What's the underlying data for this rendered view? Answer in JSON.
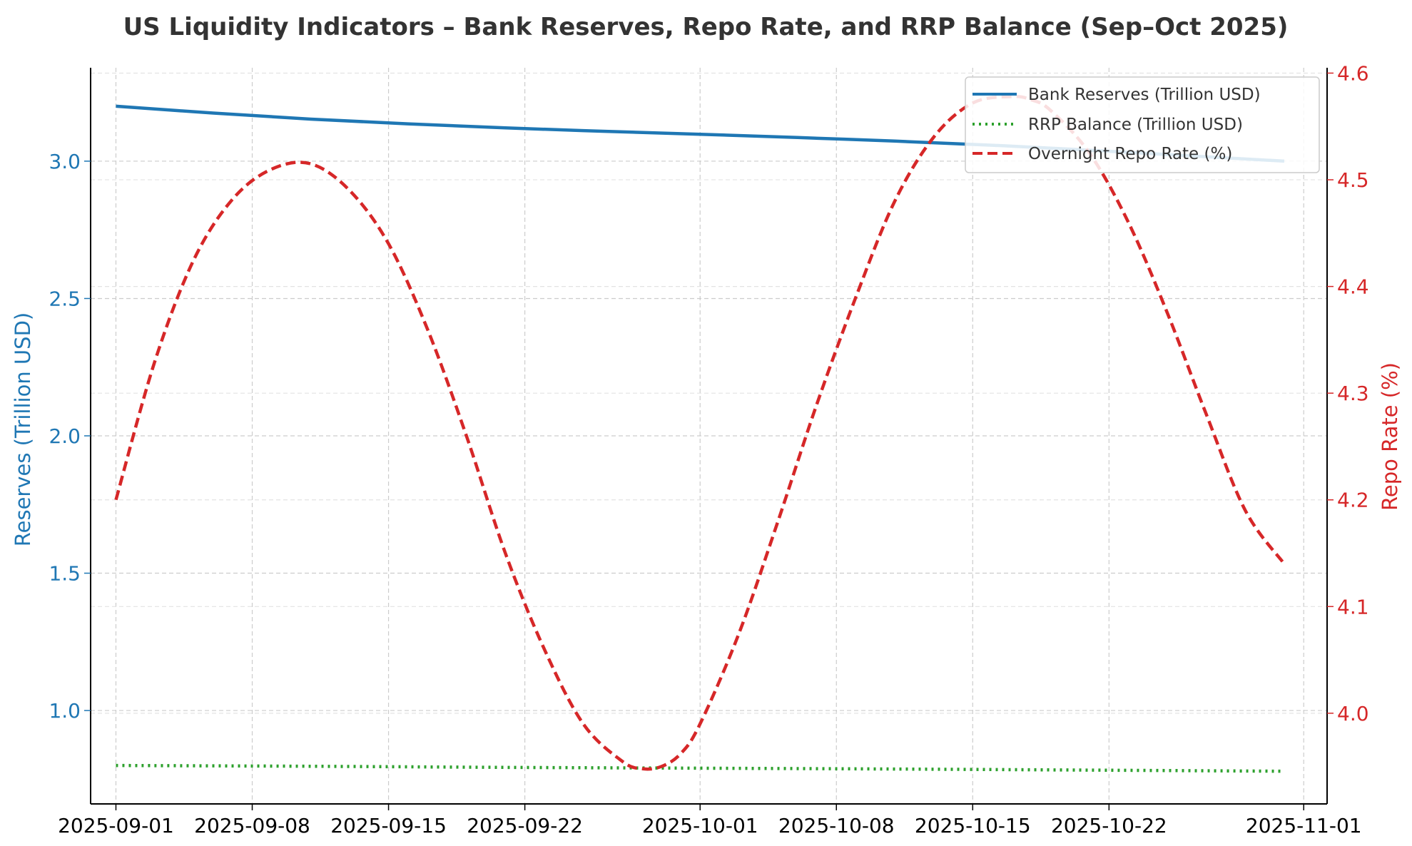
{
  "chart_data": {
    "type": "line",
    "title": "US Liquidity Indicators – Bank Reserves, Repo Rate, and RRP Balance (Sep–Oct 2025)",
    "xlabel": "",
    "ylabel_left": "Reserves (Trillion USD)",
    "ylabel_right": "Repo Rate (%)",
    "x_start": "2025-09-01",
    "x_end": "2025-10-31",
    "xlim_days": [
      -1.3,
      62.2
    ],
    "x_ticks": [
      {
        "day": 0,
        "label": "2025-09-01"
      },
      {
        "day": 7,
        "label": "2025-09-08"
      },
      {
        "day": 14,
        "label": "2025-09-15"
      },
      {
        "day": 21,
        "label": "2025-09-22"
      },
      {
        "day": 30,
        "label": "2025-10-01"
      },
      {
        "day": 37,
        "label": "2025-10-08"
      },
      {
        "day": 44,
        "label": "2025-10-15"
      },
      {
        "day": 51,
        "label": "2025-10-22"
      },
      {
        "day": 61,
        "label": "2025-11-01"
      }
    ],
    "ylim_left": [
      0.66,
      3.34
    ],
    "yticks_left": [
      "1.0",
      "1.5",
      "2.0",
      "2.5",
      "3.0"
    ],
    "ylim_right": [
      3.915,
      4.605
    ],
    "yticks_right": [
      "4.0",
      "4.1",
      "4.2",
      "4.3",
      "4.4",
      "4.5",
      "4.6"
    ],
    "grid": true,
    "legend_position": "top-right",
    "series": [
      {
        "name": "Bank Reserves (Trillion USD)",
        "axis": "left",
        "style": "solid",
        "color": "#1f77b4",
        "days": [
          0,
          5,
          10,
          15,
          20,
          25,
          30,
          35,
          40,
          45,
          50,
          55,
          60
        ],
        "values": [
          3.2,
          3.175,
          3.153,
          3.136,
          3.121,
          3.109,
          3.098,
          3.086,
          3.073,
          3.058,
          3.04,
          3.02,
          3.0
        ]
      },
      {
        "name": "RRP Balance (Trillion USD)",
        "axis": "left",
        "style": "dotted",
        "color": "#2ca02c",
        "days": [
          0,
          10,
          20,
          30,
          40,
          50,
          60
        ],
        "values": [
          0.8,
          0.797,
          0.793,
          0.79,
          0.787,
          0.783,
          0.779
        ]
      },
      {
        "name": "Overnight Repo Rate (%)",
        "axis": "right",
        "style": "dashed",
        "color": "#d62728",
        "days": [
          0,
          2,
          4,
          6,
          8,
          10,
          12,
          14,
          16,
          18,
          20,
          22,
          24,
          26,
          27,
          28,
          29,
          30,
          32,
          34,
          36,
          38,
          40,
          42,
          44,
          46,
          47,
          48,
          50,
          52,
          54,
          56,
          58,
          60
        ],
        "values": [
          4.2,
          4.33,
          4.425,
          4.482,
          4.51,
          4.515,
          4.49,
          4.44,
          4.36,
          4.26,
          4.15,
          4.06,
          3.99,
          3.955,
          3.948,
          3.95,
          3.962,
          3.99,
          4.075,
          4.18,
          4.29,
          4.39,
          4.48,
          4.54,
          4.572,
          4.578,
          4.575,
          4.565,
          4.525,
          4.46,
          4.375,
          4.28,
          4.19,
          4.14
        ]
      }
    ]
  }
}
